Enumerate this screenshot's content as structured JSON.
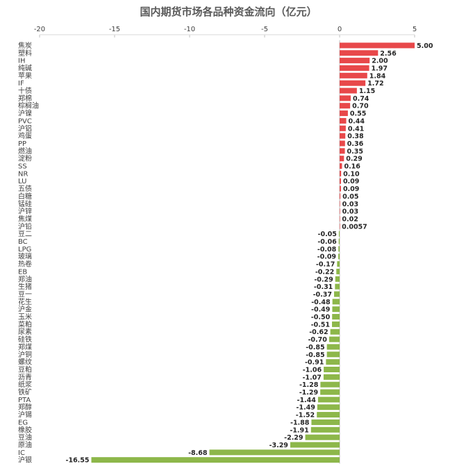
{
  "chart_data": {
    "type": "bar",
    "orientation": "horizontal",
    "title": "国内期货市场各品种资金流向（亿元）",
    "xlabel": "",
    "ylabel": "",
    "xlim": [
      -20,
      5
    ],
    "x_ticks": [
      "-20",
      "-15",
      "-10",
      "-5",
      "0",
      "5"
    ],
    "x_tick_values": [
      -20,
      -15,
      -10,
      -5,
      0,
      5
    ],
    "axis_position": "top",
    "grid": false,
    "legend": "none",
    "colors": {
      "positive": "#e8484a",
      "negative": "#8db74a",
      "text": "#404040"
    },
    "categories": [
      "焦炭",
      "塑料",
      "IH",
      "纯碱",
      "苹果",
      "IF",
      "十债",
      "郑棉",
      "棕榈油",
      "沪镍",
      "PVC",
      "沪铝",
      "鸡蛋",
      "PP",
      "燃油",
      "淀粉",
      "SS",
      "NR",
      "LU",
      "五债",
      "白糖",
      "锰硅",
      "沪锌",
      "焦煤",
      "沪铅",
      "豆二",
      "BC",
      "LPG",
      "玻璃",
      "热卷",
      "EB",
      "郑油",
      "生猪",
      "豆一",
      "花生",
      "沪金",
      "玉米",
      "菜粕",
      "尿素",
      "硅铁",
      "郑煤",
      "沪铜",
      "螺纹",
      "豆粕",
      "沥青",
      "纸浆",
      "铁矿",
      "PTA",
      "郑醇",
      "沪锡",
      "EG",
      "橡胶",
      "豆油",
      "原油",
      "IC",
      "沪银"
    ],
    "values": [
      5.0,
      2.56,
      2.0,
      1.97,
      1.84,
      1.72,
      1.15,
      0.74,
      0.7,
      0.55,
      0.44,
      0.41,
      0.38,
      0.36,
      0.35,
      0.29,
      0.16,
      0.1,
      0.09,
      0.09,
      0.05,
      0.03,
      0.03,
      0.02,
      0.0057,
      -0.05,
      -0.06,
      -0.08,
      -0.09,
      -0.17,
      -0.22,
      -0.29,
      -0.31,
      -0.37,
      -0.48,
      -0.49,
      -0.5,
      -0.51,
      -0.62,
      -0.7,
      -0.85,
      -0.85,
      -0.91,
      -1.06,
      -1.07,
      -1.28,
      -1.29,
      -1.44,
      -1.49,
      -1.52,
      -1.88,
      -1.91,
      -2.29,
      -3.29,
      -8.68,
      -16.55
    ],
    "value_labels": [
      "5.00",
      "2.56",
      "2.00",
      "1.97",
      "1.84",
      "1.72",
      "1.15",
      "0.74",
      "0.70",
      "0.55",
      "0.44",
      "0.41",
      "0.38",
      "0.36",
      "0.35",
      "0.29",
      "0.16",
      "0.10",
      "0.09",
      "0.09",
      "0.05",
      "0.03",
      "0.03",
      "0.02",
      "0.0057",
      "-0.05",
      "-0.06",
      "-0.08",
      "-0.09",
      "-0.17",
      "-0.22",
      "-0.29",
      "-0.31",
      "-0.37",
      "-0.48",
      "-0.49",
      "-0.50",
      "-0.51",
      "-0.62",
      "-0.70",
      "-0.85",
      "-0.85",
      "-0.91",
      "-1.06",
      "-1.07",
      "-1.28",
      "-1.29",
      "-1.44",
      "-1.49",
      "-1.52",
      "-1.88",
      "-1.91",
      "-2.29",
      "-3.29",
      "-8.68",
      "-16.55"
    ]
  }
}
